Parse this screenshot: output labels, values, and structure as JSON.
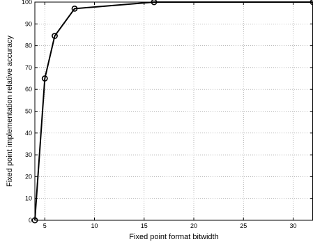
{
  "chart_data": {
    "type": "line",
    "title": "",
    "xlabel": "Fixed point format bitwidth",
    "ylabel": "Fixed point implementation relative accuracy",
    "xlim": [
      4,
      32
    ],
    "ylim": [
      0,
      100
    ],
    "xticks": [
      5,
      10,
      15,
      20,
      25,
      30
    ],
    "yticks": [
      0,
      10,
      20,
      30,
      40,
      50,
      60,
      70,
      80,
      90,
      100
    ],
    "grid": true,
    "marker": "circle",
    "series": [
      {
        "x": [
          4,
          5,
          6,
          8,
          16,
          32
        ],
        "y": [
          0,
          65,
          84.5,
          97,
          100,
          100
        ]
      }
    ]
  }
}
